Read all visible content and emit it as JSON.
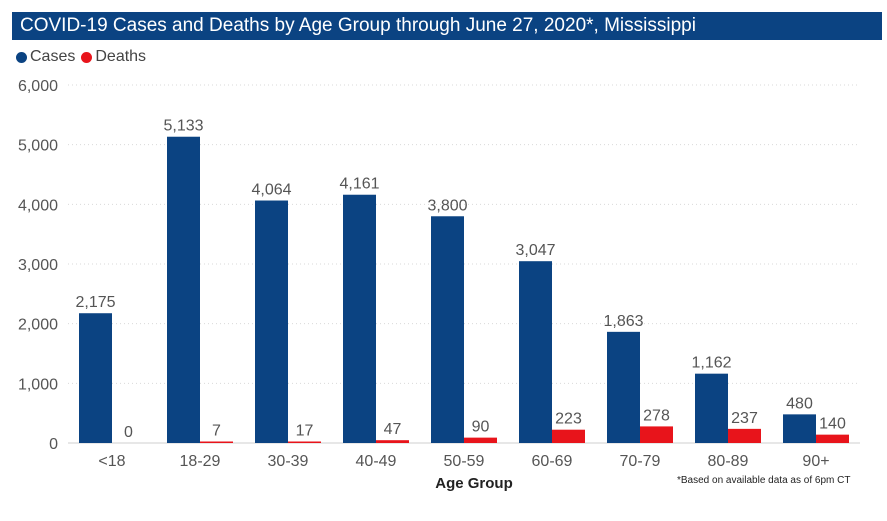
{
  "title": "COVID-19 Cases and Deaths by Age Group through June 27, 2020*, Mississippi",
  "note": "*Based on available data as of 6pm CT",
  "colors": {
    "cases": "#0b4382",
    "deaths": "#e8141b",
    "title_bg": "#0b4382"
  },
  "chart_data": {
    "type": "bar",
    "xlabel": "Age Group",
    "ylabel": "",
    "ylim": [
      0,
      6000
    ],
    "yticks": [
      "0",
      "1,000",
      "2,000",
      "3,000",
      "4,000",
      "5,000",
      "6,000"
    ],
    "grid": true,
    "legend_position": "top-left",
    "categories": [
      "<18",
      "18-29",
      "30-39",
      "40-49",
      "50-59",
      "60-69",
      "70-79",
      "80-89",
      "90+"
    ],
    "series": [
      {
        "name": "Cases",
        "values": [
          2175,
          5133,
          4064,
          4161,
          3800,
          3047,
          1863,
          1162,
          480
        ],
        "labels": [
          "2,175",
          "5,133",
          "4,064",
          "4,161",
          "3,800",
          "3,047",
          "1,863",
          "1,162",
          "480"
        ]
      },
      {
        "name": "Deaths",
        "values": [
          0,
          7,
          17,
          47,
          90,
          223,
          278,
          237,
          140
        ],
        "labels": [
          "0",
          "7",
          "17",
          "47",
          "90",
          "223",
          "278",
          "237",
          "140"
        ]
      }
    ]
  }
}
